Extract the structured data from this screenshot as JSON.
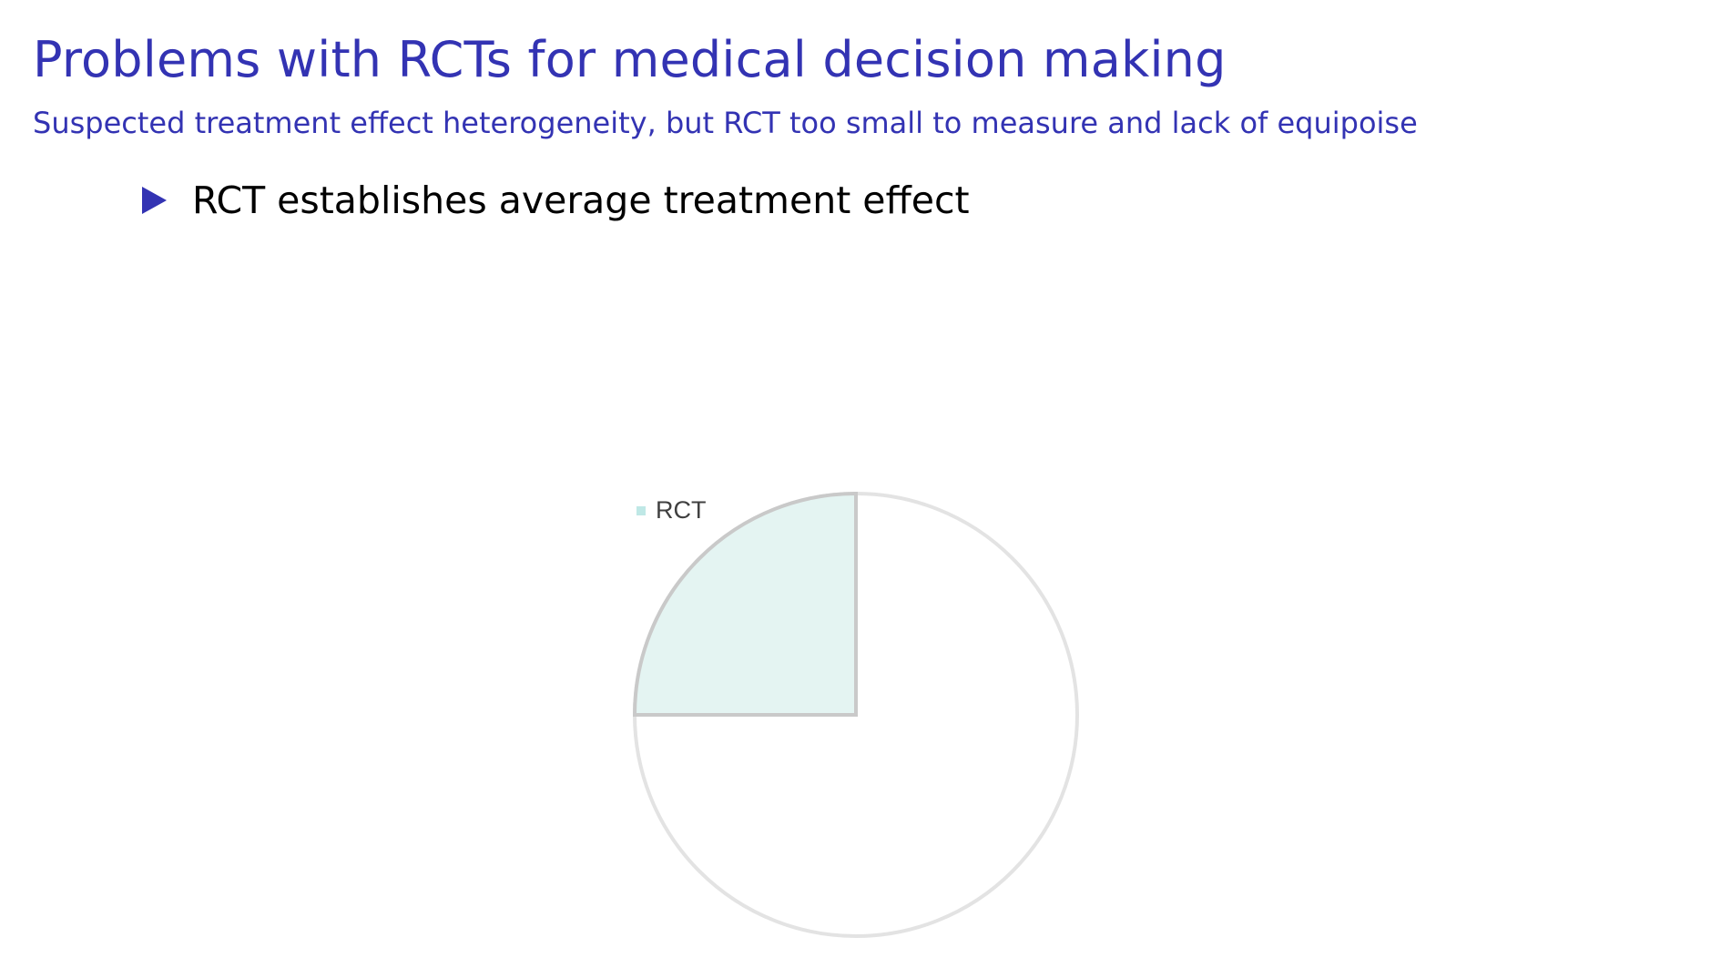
{
  "slide": {
    "title": "Problems with RCTs for medical decision making",
    "subtitle": "Suspected treatment effect heterogeneity, but RCT too small to measure and lack of equipoise",
    "bullets": [
      {
        "text": "RCT establishes average treatment effect"
      }
    ]
  },
  "colors": {
    "heading": "#3333b3",
    "bullet_marker": "#3333b3",
    "pie_outline": "#e3e3e3",
    "slice_fill": "#e4f4f2",
    "slice_stroke": "#c9c9c9",
    "legend_swatch": "#bfe8e6"
  },
  "chart_data": {
    "type": "pie",
    "legend": [
      {
        "name": "RCT",
        "color": "#bfe8e6"
      }
    ],
    "slices": [
      {
        "name": "RCT",
        "value": 0.25,
        "color": "#e4f4f2"
      },
      {
        "name": "",
        "value": 0.75,
        "color": "#ffffff"
      }
    ],
    "legend_position": "top-left"
  }
}
